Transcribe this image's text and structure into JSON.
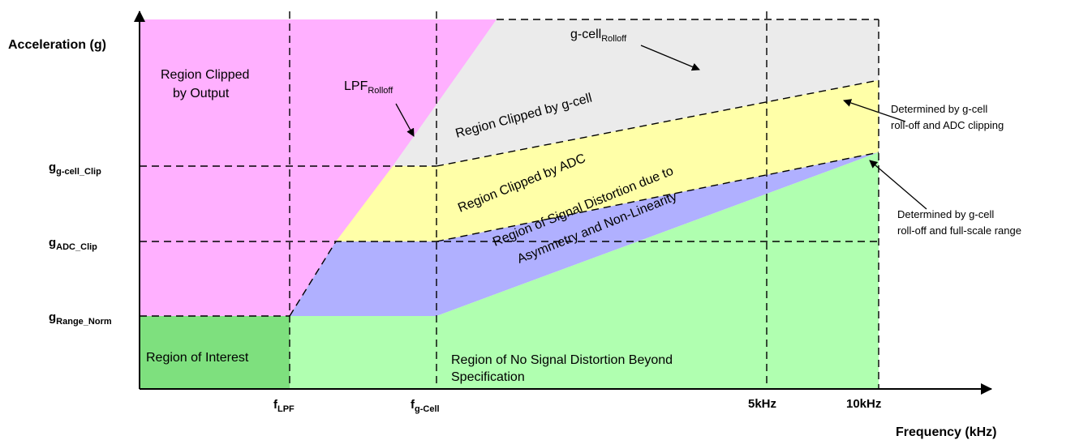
{
  "axes": {
    "y_title": "Acceleration (g)",
    "x_title": "Frequency (kHz)"
  },
  "y_ticks": [
    {
      "main": "g",
      "sub": "g-cell_Clip"
    },
    {
      "main": "g",
      "sub": "ADC_Clip"
    },
    {
      "main": "g",
      "sub": "Range_Norm"
    }
  ],
  "x_ticks": [
    {
      "main": "f",
      "sub": "LPF"
    },
    {
      "main": "f",
      "sub": "g-Cell"
    },
    {
      "main": "5kHz",
      "sub": ""
    },
    {
      "main": "10kHz",
      "sub": ""
    }
  ],
  "regions": {
    "clipped_output_line1": "Region Clipped",
    "clipped_output_line2": "by Output",
    "clipped_gcell": "Region Clipped by g-cell",
    "clipped_adc": "Region Clipped by ADC",
    "distortion_line1": "Region of Signal Distortion due to",
    "distortion_line2": "Asymmetry and Non-Linearity",
    "interest": "Region of Interest",
    "no_distortion_line1": "Region of No Signal Distortion Beyond",
    "no_distortion_line2": "Specification"
  },
  "labels": {
    "lpf_rolloff_main": "LPF",
    "lpf_rolloff_sub": "Rolloff",
    "gcell_rolloff_main": "g-cell",
    "gcell_rolloff_sub": "Rolloff"
  },
  "notes": {
    "adc_clipping_line1": "Determined by g-cell",
    "adc_clipping_line2": "roll-off and ADC clipping",
    "fullscale_line1": "Determined by g-cell",
    "fullscale_line2": "roll-off and full-scale range"
  },
  "colors": {
    "magenta": "#FFB0FF",
    "grey": "#EBEBEB",
    "yellow": "#FFFFA8",
    "blue": "#B0B0FF",
    "light_green": "#B0FFB0",
    "dark_green": "#7EE07E"
  }
}
